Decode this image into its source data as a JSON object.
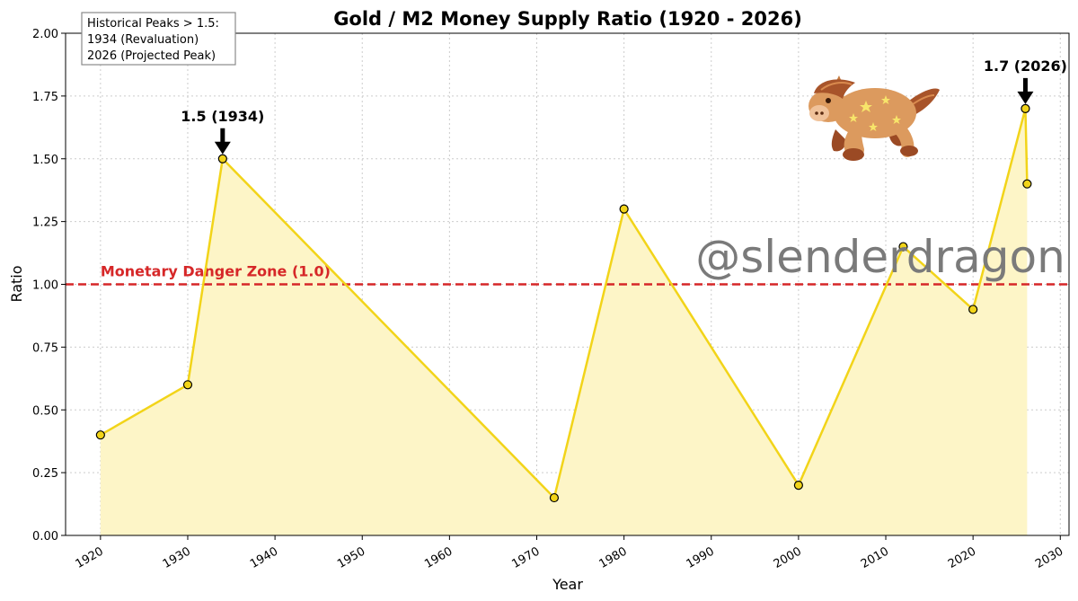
{
  "chart_data": {
    "type": "line",
    "title": "Gold / M2 Money Supply Ratio (1920 - 2026)",
    "xlabel": "Year",
    "ylabel": "Ratio",
    "xlim": [
      1916,
      2031
    ],
    "ylim": [
      0,
      2
    ],
    "x_ticks": [
      1920,
      1930,
      1940,
      1950,
      1960,
      1970,
      1980,
      1990,
      2000,
      2010,
      2020,
      2030
    ],
    "y_ticks": [
      "0.00",
      "0.25",
      "0.50",
      "0.75",
      "1.00",
      "1.25",
      "1.50",
      "1.75",
      "2.00"
    ],
    "grid": true,
    "series": [
      {
        "x": [
          1920,
          1930,
          1934,
          1972,
          1980,
          2000,
          2012,
          2020,
          2026,
          2026.2
        ],
        "values": [
          0.4,
          0.6,
          1.5,
          0.15,
          1.3,
          0.2,
          1.15,
          0.9,
          1.7,
          1.4
        ],
        "color": "#f2d419",
        "fill": "#fdf5c7"
      }
    ],
    "threshold": {
      "y": 1.0,
      "label": "Monetary Danger Zone (1.0)",
      "color": "#d62728"
    },
    "annotations": [
      {
        "x": 1934,
        "y": 1.5,
        "text": "1.5 (1934)"
      },
      {
        "x": 2026,
        "y": 1.7,
        "text": "1.7 (2026)"
      }
    ],
    "legend": {
      "placement": "top-left",
      "lines": [
        "Historical Peaks > 1.5:",
        "1934 (Revaluation)",
        "2026 (Projected Peak)"
      ]
    },
    "watermark": "@slenderdragon",
    "mascot": "horse-mascot-icon"
  }
}
